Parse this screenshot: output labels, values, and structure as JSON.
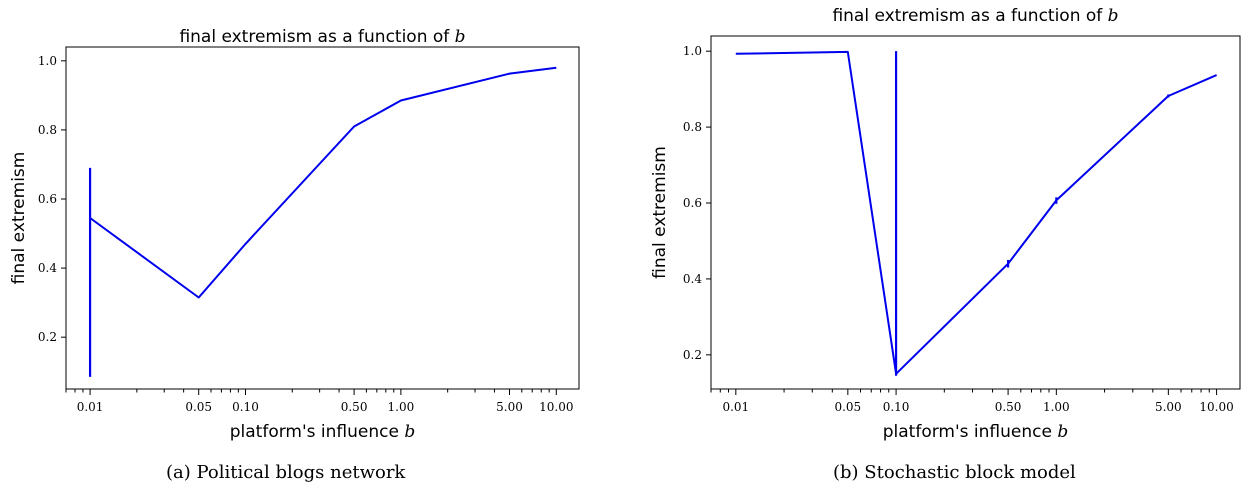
{
  "chart_data": [
    {
      "type": "line",
      "title": "final extremism as a function of",
      "title_var": "b",
      "xlabel": "platform's influence",
      "xlabel_var": "b",
      "ylabel": "final extremism",
      "xscale": "log",
      "x_ticks": [
        "0.01",
        "0.05",
        "0.10",
        "0.50",
        "1.00",
        "5.00",
        "10.00"
      ],
      "y_ticks": [
        "0.2",
        "0.4",
        "0.6",
        "0.8",
        "1.0"
      ],
      "xlim": [
        0.007,
        14
      ],
      "ylim": [
        0.05,
        1.04
      ],
      "grid": false,
      "caption": "(a) Political blogs network",
      "series": [
        {
          "color": "#0000ee",
          "x": [
            0.01,
            0.05,
            0.1,
            0.5,
            1.0,
            5.0,
            10.0
          ],
          "y": [
            0.545,
            0.315,
            0.47,
            0.81,
            0.885,
            0.963,
            0.98
          ],
          "error_bars": [
            {
              "x": 0.01,
              "low": 0.085,
              "high": 0.69
            }
          ]
        }
      ]
    },
    {
      "type": "line",
      "title": "final extremism as a function of",
      "title_var": "b",
      "xlabel": "platform's influence",
      "xlabel_var": "b",
      "ylabel": "final extremism",
      "xscale": "log",
      "x_ticks": [
        "0.01",
        "0.05",
        "0.10",
        "0.50",
        "1.00",
        "5.00",
        "10.00"
      ],
      "y_ticks": [
        "0.2",
        "0.4",
        "0.6",
        "0.8",
        "1.0"
      ],
      "xlim": [
        0.007,
        14
      ],
      "ylim": [
        0.11,
        1.04
      ],
      "grid": false,
      "caption": "(b) Stochastic block model",
      "series": [
        {
          "color": "#0000ee",
          "x": [
            0.01,
            0.05,
            0.1,
            0.5,
            1.0,
            5.0,
            10.0
          ],
          "y": [
            0.993,
            0.998,
            0.15,
            0.44,
            0.607,
            0.882,
            0.937
          ],
          "error_bars": [
            {
              "x": 0.1,
              "low": 0.145,
              "high": 1.0
            },
            {
              "x": 0.5,
              "low": 0.43,
              "high": 0.45
            },
            {
              "x": 1.0,
              "low": 0.598,
              "high": 0.615
            },
            {
              "x": 5.0,
              "low": 0.878,
              "high": 0.886
            }
          ]
        }
      ]
    }
  ]
}
